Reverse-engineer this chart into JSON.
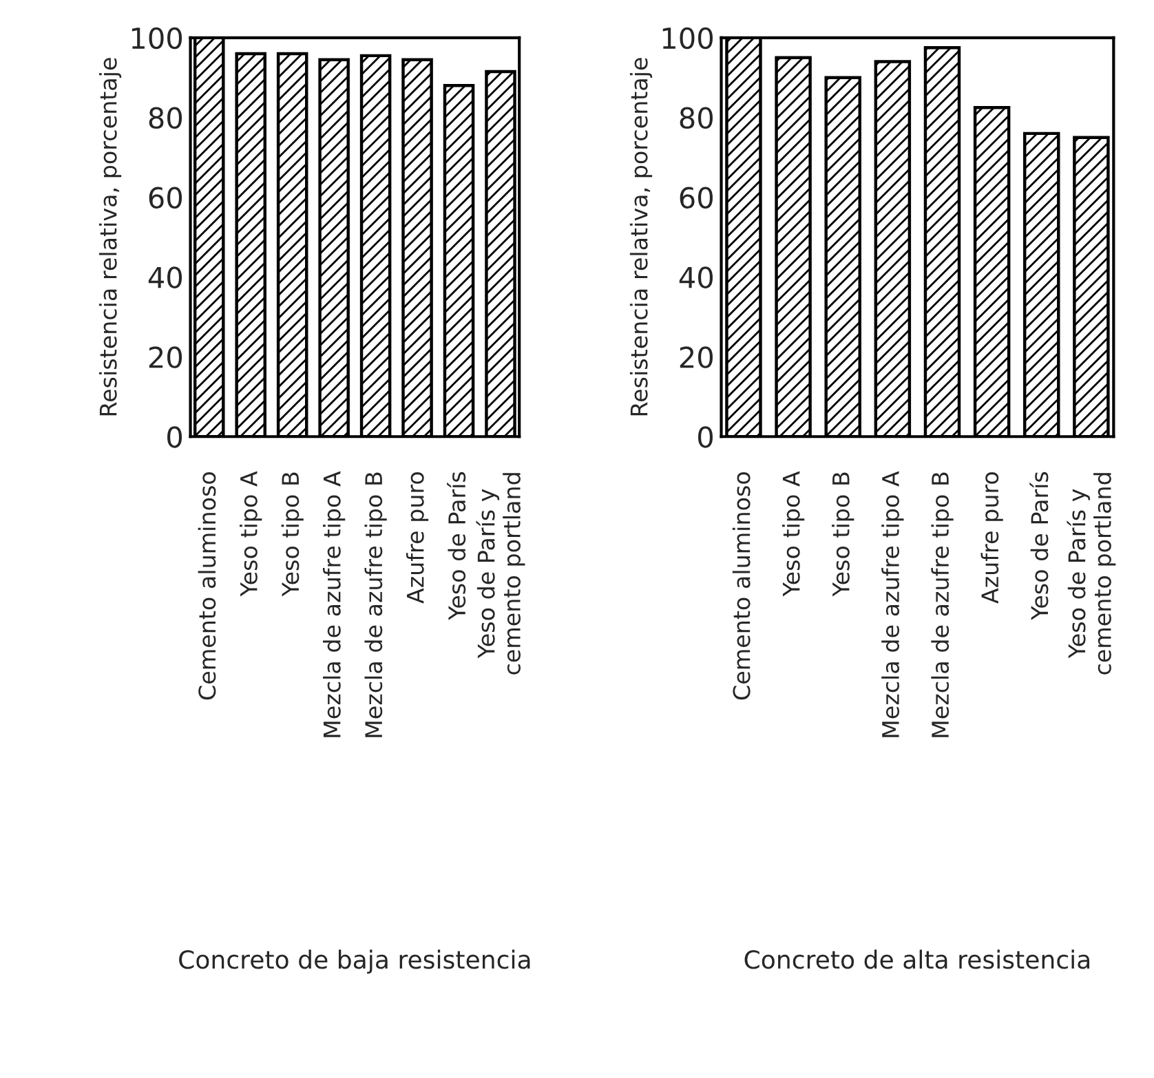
{
  "chart_data": [
    {
      "type": "bar",
      "xlabel": "Concreto de baja resistencia",
      "ylabel": "Resistencia relativa, porcentaje",
      "categories": [
        "Cemento aluminoso",
        "Yeso tipo A",
        "Yeso tipo B",
        "Mezcla de azufre tipo A",
        "Mezcla de azufre tipo B",
        "Azufre puro",
        "Yeso de París",
        "Yeso de París y\ncemento portland"
      ],
      "values": [
        100,
        96,
        96,
        94.5,
        95.5,
        94.5,
        88,
        91.5
      ],
      "color": "#000000",
      "ylim": [
        0,
        100
      ],
      "yticks": [
        0,
        20,
        40,
        60,
        80,
        100
      ],
      "grid": false,
      "legend": false
    },
    {
      "type": "bar",
      "xlabel": "Concreto de alta resistencia",
      "ylabel": "Resistencia relativa, porcentaje",
      "categories": [
        "Cemento aluminoso",
        "Yeso tipo A",
        "Yeso tipo B",
        "Mezcla de azufre tipo A",
        "Mezcla de azufre tipo B",
        "Azufre puro",
        "Yeso de París",
        "Yeso de París y\ncemento portland"
      ],
      "values": [
        100,
        95,
        90,
        94,
        97.5,
        82.5,
        76,
        75
      ],
      "color": "#000000",
      "ylim": [
        0,
        100
      ],
      "yticks": [
        0,
        20,
        40,
        60,
        80,
        100
      ],
      "grid": false,
      "legend": false
    }
  ]
}
